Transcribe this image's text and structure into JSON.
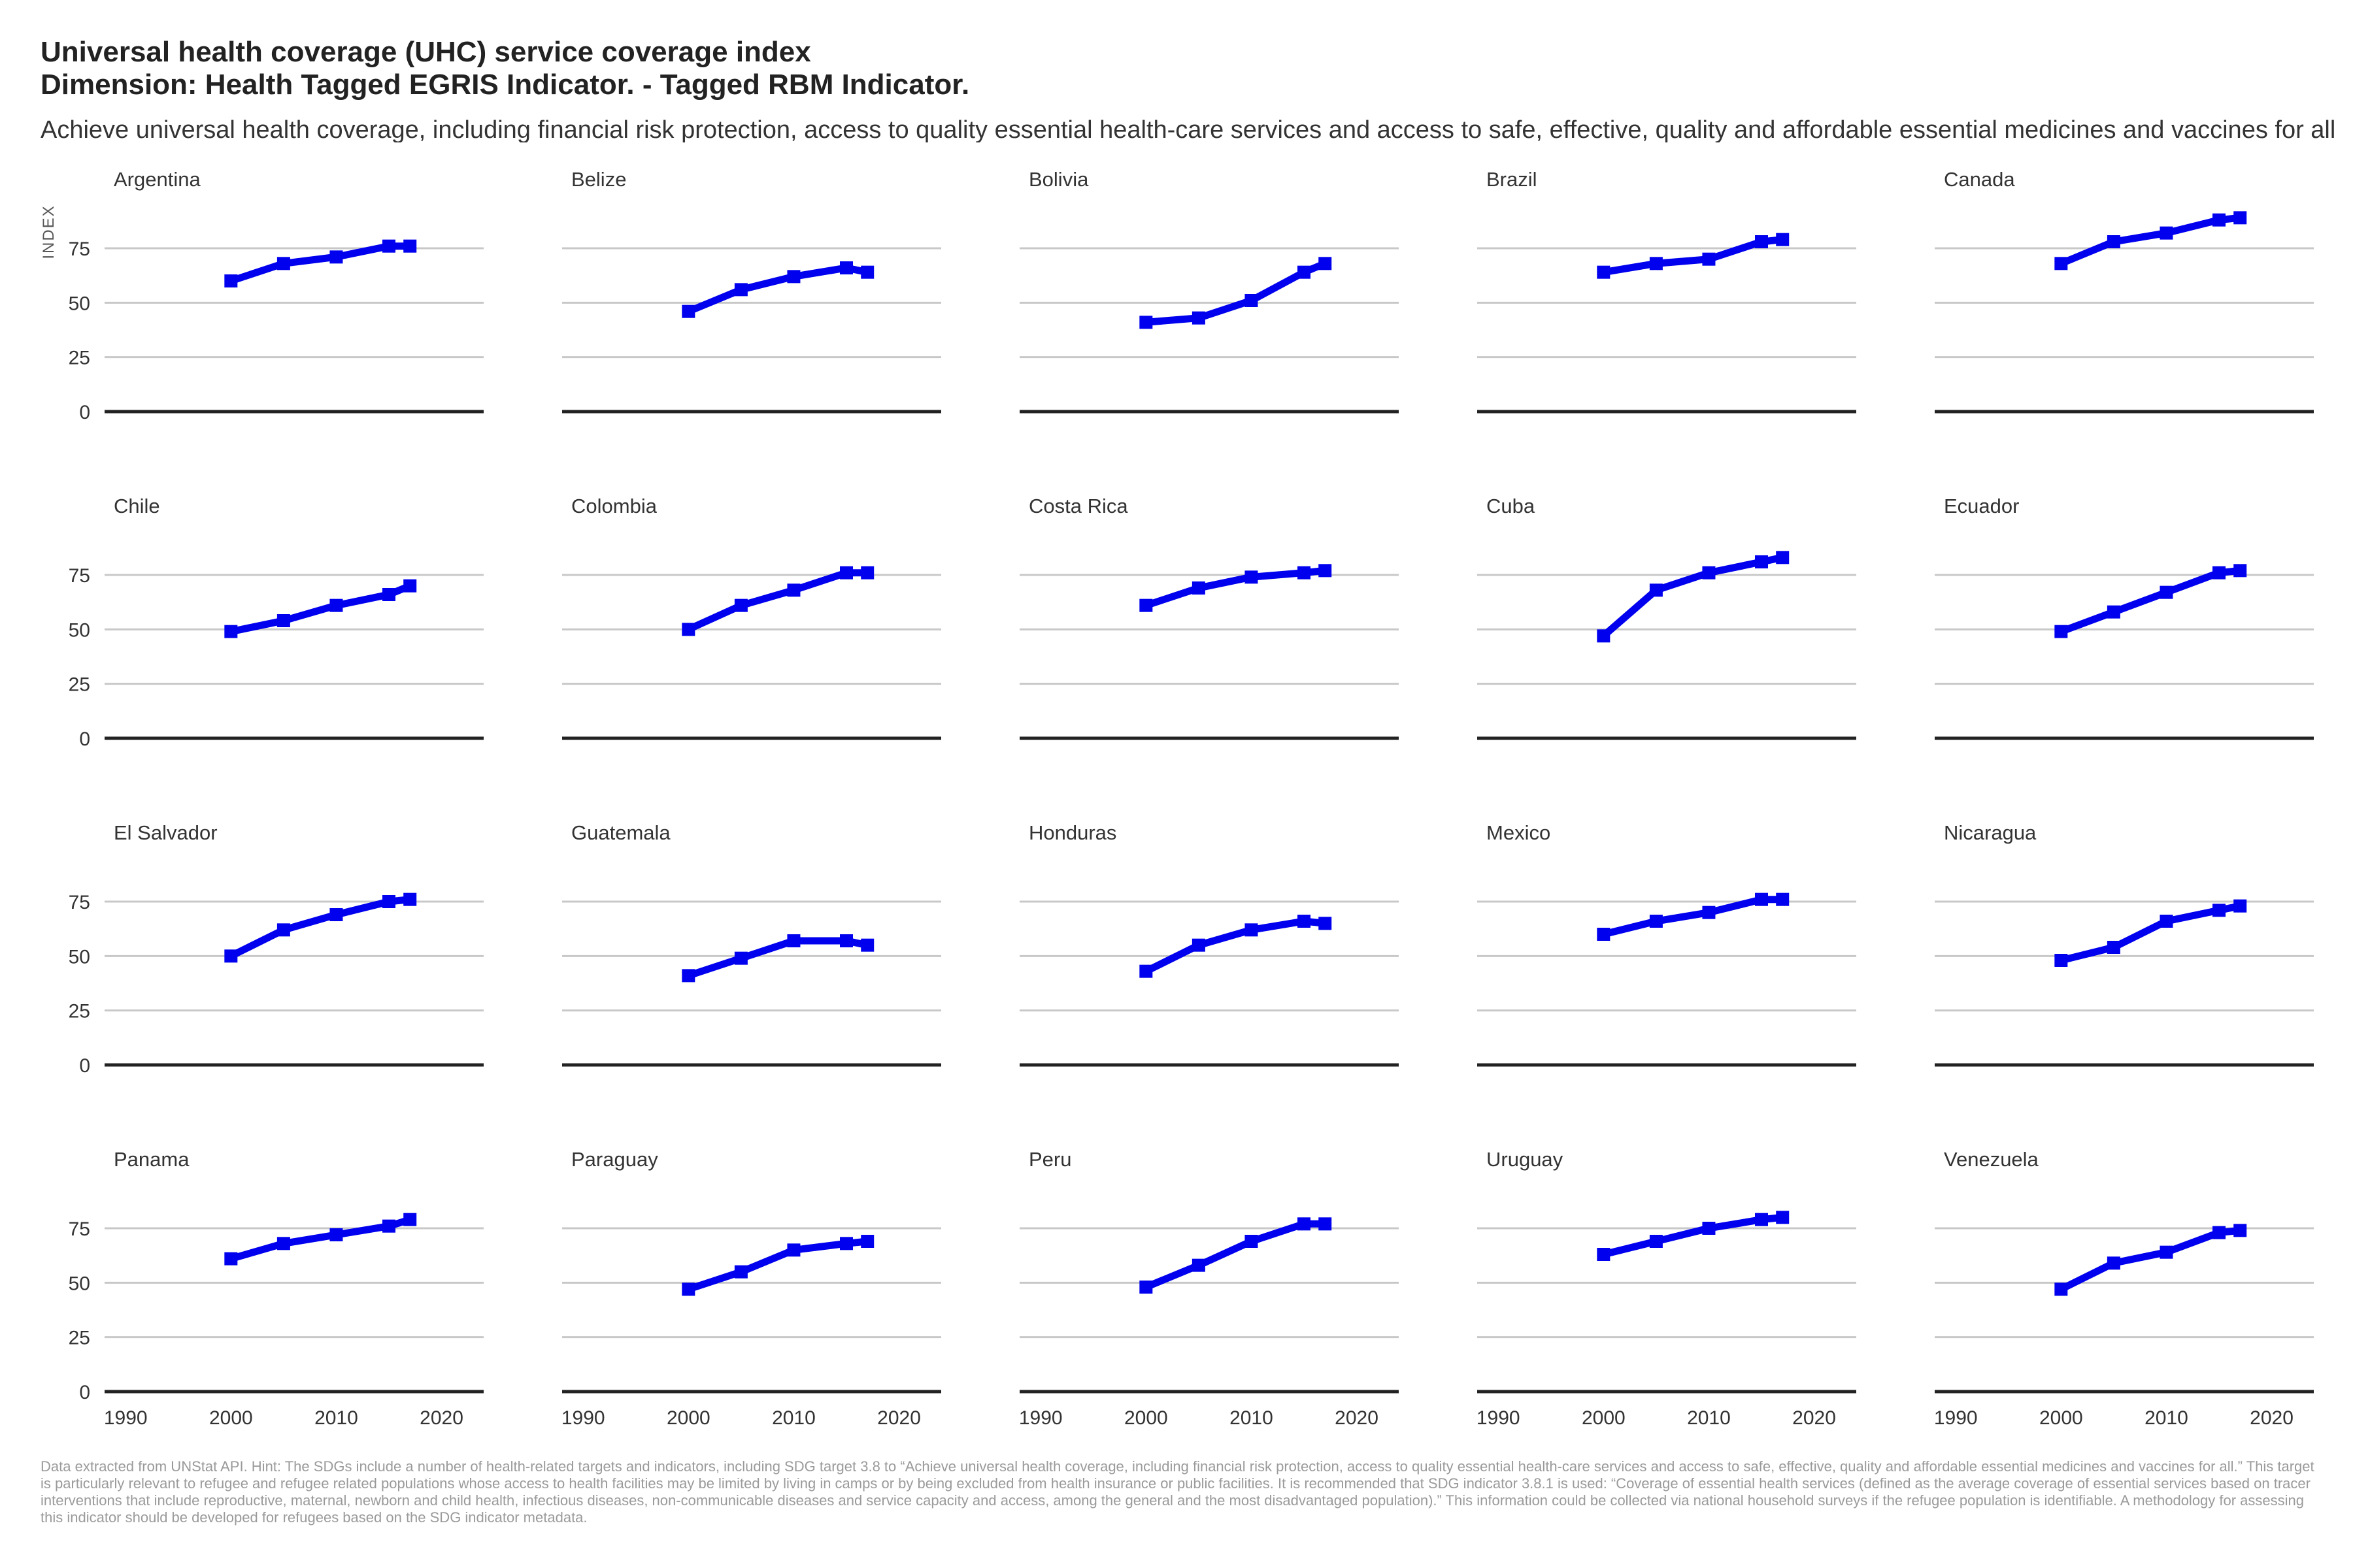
{
  "title_line1": "Universal health coverage (UHC) service coverage index",
  "title_line2": "Dimension: Health Tagged EGRIS Indicator. - Tagged RBM  Indicator.",
  "subtitle": "Achieve universal health coverage, including financial risk protection, access to quality essential health-care services and access to safe, effective, quality and affordable essential medicines and vaccines for all",
  "caption": "Data extracted from UNStat API. Hint: The SDGs include a number of health-related targets and indicators, including SDG target 3.8 to “Achieve universal health coverage, including financial risk protection, access to quality essential health-care services and access to safe, effective, quality and affordable essential medicines and vaccines for all.” This target is particularly relevant to refugee and refugee related populations whose access to health facilities may be limited by living in camps or by being excluded from health insurance or public facilities. It is recommended that SDG indicator 3.8.1 is used: “Coverage of essential health services (defined as the average coverage of essential services based on tracer interventions that include reproductive, maternal, newborn and child health, infectious diseases, non-communicable diseases and service capacity and access, among the general and the most disadvantaged population).” This information could be collected via national household surveys if the refugee population is identifiable. A methodology for assessing this indicator should be developed for refugees based on the SDG indicator metadata.",
  "colors": {
    "line": "#0000ee",
    "grid": "#c8c8c8",
    "baseline": "#222222",
    "text": "#333333"
  },
  "chart_data": {
    "type": "line",
    "layout": "small-multiples",
    "ylabel": "INDEX",
    "xlim": [
      1988,
      2024
    ],
    "ylim": [
      0,
      90
    ],
    "x_ticks": [
      1990,
      2000,
      2010,
      2020
    ],
    "y_ticks": [
      0,
      25,
      50,
      75
    ],
    "grid": "horizontal",
    "x": [
      2000,
      2005,
      2010,
      2015,
      2017
    ],
    "panels": [
      {
        "name": "Argentina",
        "values": [
          60,
          68,
          71,
          76,
          76
        ]
      },
      {
        "name": "Belize",
        "values": [
          46,
          56,
          62,
          66,
          64
        ]
      },
      {
        "name": "Bolivia",
        "values": [
          41,
          43,
          51,
          64,
          68
        ]
      },
      {
        "name": "Brazil",
        "values": [
          64,
          68,
          70,
          78,
          79
        ]
      },
      {
        "name": "Canada",
        "values": [
          68,
          78,
          82,
          88,
          89
        ]
      },
      {
        "name": "Chile",
        "values": [
          49,
          54,
          61,
          66,
          70
        ]
      },
      {
        "name": "Colombia",
        "values": [
          50,
          61,
          68,
          76,
          76
        ]
      },
      {
        "name": "Costa Rica",
        "values": [
          61,
          69,
          74,
          76,
          77
        ]
      },
      {
        "name": "Cuba",
        "values": [
          47,
          68,
          76,
          81,
          83
        ]
      },
      {
        "name": "Ecuador",
        "values": [
          49,
          58,
          67,
          76,
          77
        ]
      },
      {
        "name": "El Salvador",
        "values": [
          50,
          62,
          69,
          75,
          76
        ]
      },
      {
        "name": "Guatemala",
        "values": [
          41,
          49,
          57,
          57,
          55
        ]
      },
      {
        "name": "Honduras",
        "values": [
          43,
          55,
          62,
          66,
          65
        ]
      },
      {
        "name": "Mexico",
        "values": [
          60,
          66,
          70,
          76,
          76
        ]
      },
      {
        "name": "Nicaragua",
        "values": [
          48,
          54,
          66,
          71,
          73
        ]
      },
      {
        "name": "Panama",
        "values": [
          61,
          68,
          72,
          76,
          79
        ]
      },
      {
        "name": "Paraguay",
        "values": [
          47,
          55,
          65,
          68,
          69
        ]
      },
      {
        "name": "Peru",
        "values": [
          48,
          58,
          69,
          77,
          77
        ]
      },
      {
        "name": "Uruguay",
        "values": [
          63,
          69,
          75,
          79,
          80
        ]
      },
      {
        "name": "Venezuela",
        "values": [
          47,
          59,
          64,
          73,
          74
        ]
      }
    ]
  }
}
